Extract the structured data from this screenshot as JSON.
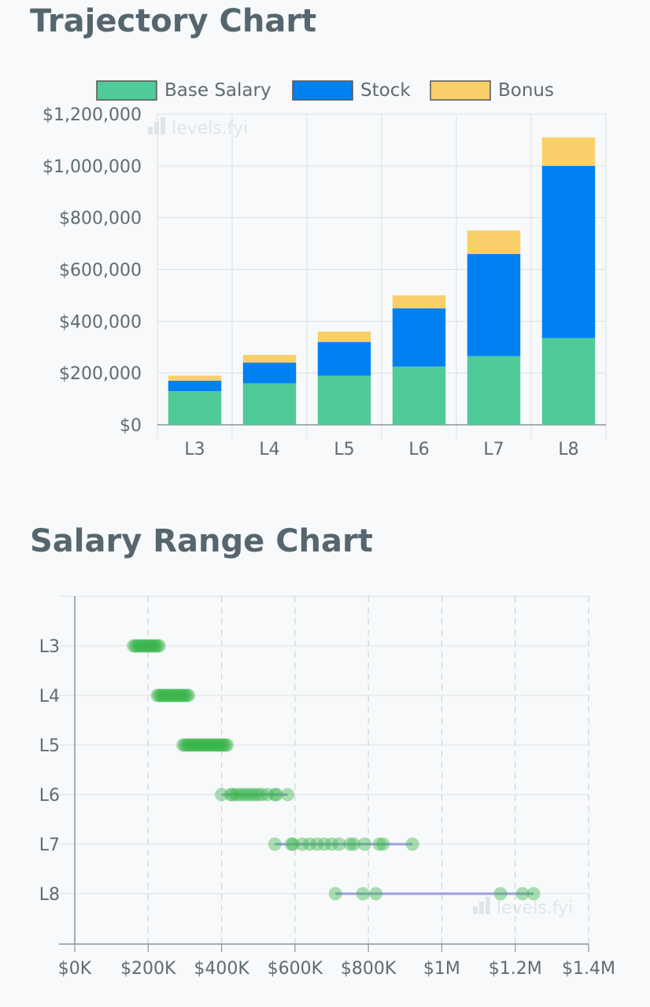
{
  "sections": {
    "trajectory_title": "Trajectory Chart",
    "range_title": "Salary Range Chart"
  },
  "watermark": "levels.fyi",
  "chart_data": [
    {
      "type": "bar",
      "stacked": true,
      "title": "Trajectory Chart",
      "categories": [
        "L3",
        "L4",
        "L5",
        "L6",
        "L7",
        "L8"
      ],
      "series": [
        {
          "name": "Base Salary",
          "color": "#4ecb98",
          "values": [
            130000,
            160000,
            190000,
            225000,
            265000,
            335000
          ]
        },
        {
          "name": "Stock",
          "color": "#0081f2",
          "values": [
            40000,
            80000,
            130000,
            225000,
            395000,
            665000
          ]
        },
        {
          "name": "Bonus",
          "color": "#f9cf69",
          "values": [
            20000,
            30000,
            40000,
            50000,
            90000,
            110000
          ]
        }
      ],
      "ylim": [
        0,
        1200000
      ],
      "yticks": [
        "$1,200,000",
        "$1,000,000",
        "$800,000",
        "$600,000",
        "$400,000",
        "$200,000",
        "$0"
      ],
      "ytick_values": [
        1200000,
        1000000,
        800000,
        600000,
        400000,
        200000,
        0
      ],
      "legend_position": "top",
      "grid": true
    },
    {
      "type": "scatter",
      "title": "Salary Range Chart",
      "categories": [
        "L3",
        "L4",
        "L5",
        "L6",
        "L7",
        "L8"
      ],
      "xlim": [
        0,
        1400000
      ],
      "xticks": [
        "$0K",
        "$200K",
        "$400K",
        "$600K",
        "$800K",
        "$1M",
        "$1.2M",
        "$1.4M"
      ],
      "xtick_values": [
        0,
        200000,
        400000,
        600000,
        800000,
        1000000,
        1200000,
        1400000
      ],
      "point_color": "#3ab54a",
      "range_line_color": "#9b9ee0",
      "grid": true,
      "rows": [
        {
          "level": "L3",
          "points": [
            160000,
            165000,
            170000,
            175000,
            180000,
            185000,
            190000,
            195000,
            200000,
            205000,
            210000,
            215000,
            220000,
            225000,
            230000
          ]
        },
        {
          "level": "L4",
          "points": [
            225000,
            230000,
            235000,
            240000,
            245000,
            250000,
            255000,
            260000,
            265000,
            270000,
            275000,
            280000,
            285000,
            290000,
            295000,
            300000,
            305000,
            310000
          ]
        },
        {
          "level": "L5",
          "points": [
            295000,
            300000,
            305000,
            310000,
            315000,
            320000,
            325000,
            330000,
            335000,
            340000,
            345000,
            350000,
            355000,
            360000,
            365000,
            370000,
            375000,
            380000,
            385000,
            390000,
            395000,
            400000,
            405000,
            410000,
            415000
          ]
        },
        {
          "level": "L6",
          "points": [
            400000,
            425000,
            430000,
            440000,
            450000,
            460000,
            470000,
            480000,
            490000,
            500000,
            510000,
            525000,
            545000,
            550000,
            580000
          ]
        },
        {
          "level": "L7",
          "points": [
            545000,
            590000,
            595000,
            620000,
            640000,
            660000,
            680000,
            700000,
            720000,
            750000,
            760000,
            790000,
            830000,
            840000,
            920000
          ]
        },
        {
          "level": "L8",
          "points": [
            710000,
            785000,
            820000,
            1160000,
            1220000,
            1250000
          ]
        }
      ]
    }
  ]
}
